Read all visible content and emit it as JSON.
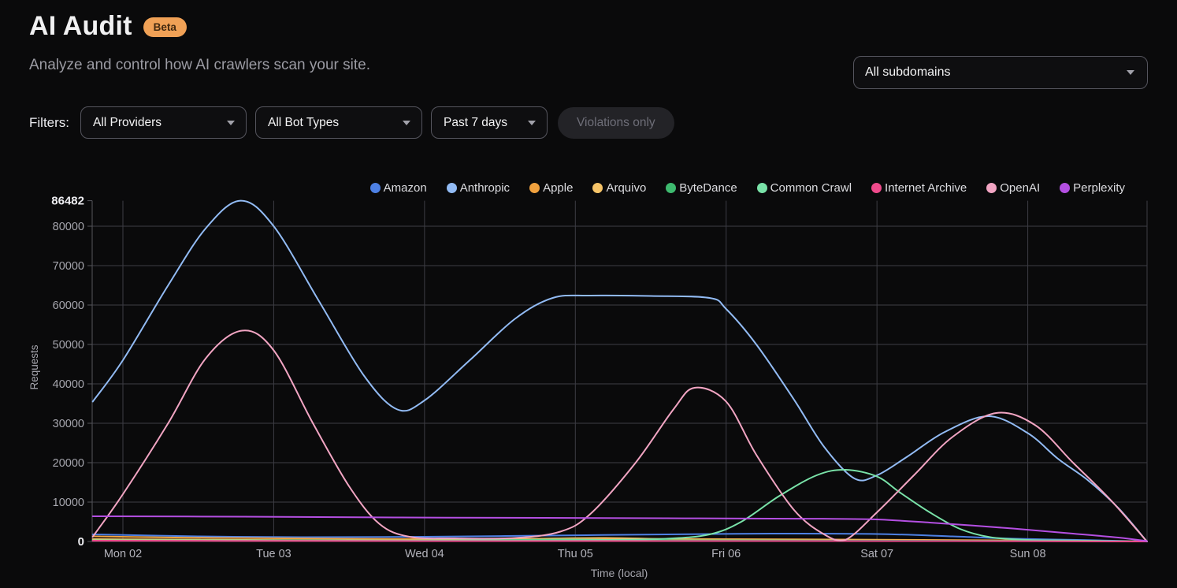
{
  "header": {
    "title": "AI Audit",
    "beta_badge": "Beta",
    "subtitle": "Analyze and control how AI crawlers scan your site.",
    "subdomain_selector": "All subdomains"
  },
  "filters": {
    "label": "Filters:",
    "provider": "All Providers",
    "bot_type": "All Bot Types",
    "time_range": "Past 7 days",
    "violations_toggle": "Violations only"
  },
  "chart_data": {
    "type": "line",
    "title": "",
    "xlabel": "Time (local)",
    "ylabel": "Requests",
    "ylim": [
      0,
      86482
    ],
    "y_ticks": [
      0,
      10000,
      20000,
      30000,
      40000,
      50000,
      60000,
      70000,
      80000,
      86482
    ],
    "x_ticks": [
      "Mon 02",
      "Tue 03",
      "Wed 04",
      "Thu 05",
      "Fri 06",
      "Sat 07",
      "Sun 08"
    ],
    "x_range_days": [
      -0.2,
      6.79
    ],
    "grid": true,
    "legend_position": "top",
    "series": [
      {
        "name": "Amazon",
        "color": "#4d80e4",
        "points": [
          [
            -0.2,
            1800
          ],
          [
            0.5,
            1300
          ],
          [
            1.2,
            1100
          ],
          [
            2.0,
            1200
          ],
          [
            2.8,
            1500
          ],
          [
            3.6,
            1800
          ],
          [
            4.3,
            2000
          ],
          [
            5.0,
            1900
          ],
          [
            5.5,
            1300
          ],
          [
            5.92,
            700
          ],
          [
            6.4,
            350
          ],
          [
            6.79,
            0
          ]
        ]
      },
      {
        "name": "Anthropic",
        "color": "#92bbf4",
        "points": [
          [
            -0.2,
            35500
          ],
          [
            0,
            46000
          ],
          [
            0.3,
            65000
          ],
          [
            0.55,
            79500
          ],
          [
            0.78,
            86482
          ],
          [
            1.0,
            80000
          ],
          [
            1.3,
            61000
          ],
          [
            1.6,
            42000
          ],
          [
            1.82,
            33500
          ],
          [
            2.0,
            35800
          ],
          [
            2.3,
            46000
          ],
          [
            2.6,
            56500
          ],
          [
            2.85,
            61800
          ],
          [
            3.1,
            62400
          ],
          [
            3.5,
            62300
          ],
          [
            3.89,
            61800
          ],
          [
            4.0,
            59000
          ],
          [
            4.2,
            50000
          ],
          [
            4.45,
            36000
          ],
          [
            4.65,
            24000
          ],
          [
            4.85,
            16000
          ],
          [
            5.0,
            16800
          ],
          [
            5.2,
            21500
          ],
          [
            5.45,
            27800
          ],
          [
            5.74,
            31800
          ],
          [
            6.0,
            27500
          ],
          [
            6.2,
            21000
          ],
          [
            6.4,
            15500
          ],
          [
            6.6,
            8500
          ],
          [
            6.79,
            0
          ]
        ]
      },
      {
        "name": "Apple",
        "color": "#f0a13e",
        "points": [
          [
            -0.2,
            1300
          ],
          [
            0.6,
            900
          ],
          [
            1.5,
            700
          ],
          [
            2.5,
            600
          ],
          [
            3.5,
            650
          ],
          [
            4.5,
            550
          ],
          [
            5.3,
            400
          ],
          [
            6.0,
            250
          ],
          [
            6.79,
            0
          ]
        ]
      },
      {
        "name": "Arquivo",
        "color": "#f6c468",
        "points": [
          [
            -0.2,
            600
          ],
          [
            0.8,
            400
          ],
          [
            1.8,
            300
          ],
          [
            2.7,
            700
          ],
          [
            3.2,
            900
          ],
          [
            3.8,
            500
          ],
          [
            4.8,
            350
          ],
          [
            5.8,
            200
          ],
          [
            6.79,
            0
          ]
        ]
      },
      {
        "name": "ByteDance",
        "color": "#3eba6f",
        "points": [
          [
            -0.2,
            300
          ],
          [
            1.0,
            250
          ],
          [
            2.0,
            200
          ],
          [
            2.9,
            500
          ],
          [
            3.5,
            300
          ],
          [
            4.5,
            250
          ],
          [
            5.5,
            180
          ],
          [
            6.79,
            0
          ]
        ]
      },
      {
        "name": "Common Crawl",
        "color": "#79e2a8",
        "points": [
          [
            -0.2,
            300
          ],
          [
            0.8,
            280
          ],
          [
            1.8,
            250
          ],
          [
            2.6,
            300
          ],
          [
            3.2,
            400
          ],
          [
            3.6,
            700
          ],
          [
            3.89,
            1800
          ],
          [
            4.1,
            5000
          ],
          [
            4.35,
            11500
          ],
          [
            4.6,
            16800
          ],
          [
            4.79,
            18200
          ],
          [
            5.0,
            16500
          ],
          [
            5.15,
            12500
          ],
          [
            5.35,
            7400
          ],
          [
            5.55,
            3200
          ],
          [
            5.75,
            1100
          ],
          [
            6.0,
            400
          ],
          [
            6.3,
            250
          ],
          [
            6.79,
            0
          ]
        ]
      },
      {
        "name": "Internet Archive",
        "color": "#ef4a8b",
        "points": [
          [
            -0.2,
            200
          ],
          [
            1.0,
            150
          ],
          [
            2.5,
            100
          ],
          [
            4.0,
            130
          ],
          [
            5.5,
            90
          ],
          [
            6.79,
            0
          ]
        ]
      },
      {
        "name": "OpenAI",
        "color": "#f2a5c3",
        "points": [
          [
            -0.2,
            1200
          ],
          [
            0,
            12000
          ],
          [
            0.3,
            30000
          ],
          [
            0.55,
            46500
          ],
          [
            0.79,
            53500
          ],
          [
            1.0,
            48500
          ],
          [
            1.26,
            30000
          ],
          [
            1.5,
            14000
          ],
          [
            1.7,
            4500
          ],
          [
            1.9,
            1200
          ],
          [
            2.2,
            800
          ],
          [
            2.6,
            900
          ],
          [
            2.9,
            2500
          ],
          [
            3.1,
            7000
          ],
          [
            3.4,
            20000
          ],
          [
            3.65,
            33500
          ],
          [
            3.79,
            39000
          ],
          [
            4.0,
            35500
          ],
          [
            4.2,
            22000
          ],
          [
            4.45,
            8000
          ],
          [
            4.65,
            1800
          ],
          [
            4.79,
            400
          ],
          [
            5.0,
            7400
          ],
          [
            5.25,
            17000
          ],
          [
            5.5,
            26500
          ],
          [
            5.79,
            32600
          ],
          [
            6.05,
            29500
          ],
          [
            6.3,
            20000
          ],
          [
            6.55,
            10500
          ],
          [
            6.79,
            0
          ]
        ]
      },
      {
        "name": "Perplexity",
        "color": "#b44fe2",
        "points": [
          [
            -0.2,
            6400
          ],
          [
            0.8,
            6300
          ],
          [
            1.8,
            6100
          ],
          [
            2.8,
            6000
          ],
          [
            3.6,
            5900
          ],
          [
            4.3,
            5800
          ],
          [
            4.7,
            5750
          ],
          [
            5.0,
            5600
          ],
          [
            5.35,
            4800
          ],
          [
            5.9,
            3300
          ],
          [
            6.3,
            2000
          ],
          [
            6.6,
            1000
          ],
          [
            6.79,
            100
          ]
        ]
      }
    ]
  }
}
